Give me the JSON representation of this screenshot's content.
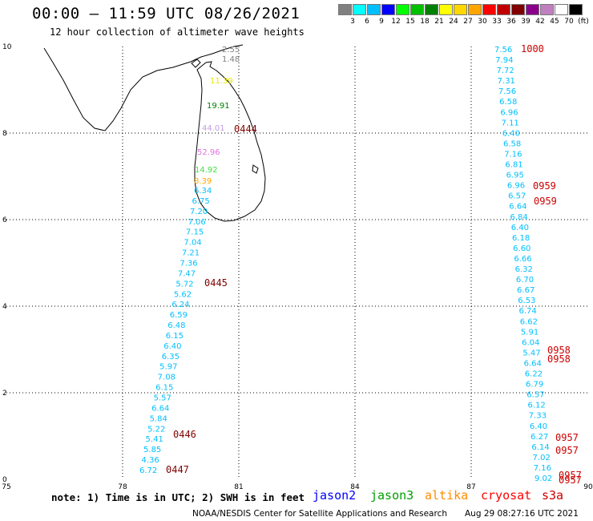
{
  "header": {
    "title": "00:00 – 11:59 UTC 08/26/2021",
    "subtitle": "12 hour collection of altimeter wave heights"
  },
  "legend": {
    "unit": "(ft)",
    "colors": [
      "#808080",
      "#00ffff",
      "#00bfff",
      "#0000ff",
      "#00ff00",
      "#00c000",
      "#008000",
      "#ffff00",
      "#ffd700",
      "#ffa500",
      "#ff0000",
      "#c00000",
      "#800000",
      "#8b008b",
      "#c080c0",
      "#ffffff",
      "#000000"
    ],
    "labels": [
      "3",
      "6",
      "9",
      "12",
      "15",
      "18",
      "21",
      "24",
      "27",
      "30",
      "33",
      "36",
      "39",
      "42",
      "45",
      "70"
    ]
  },
  "axes": {
    "x_ticks": [
      "75",
      "78",
      "81",
      "84",
      "87",
      "90"
    ],
    "y_ticks": [
      "0",
      "2",
      "4",
      "6",
      "8",
      "10"
    ]
  },
  "map_icons": [
    "sri-lanka-coastline",
    "india-coastline"
  ],
  "track1": {
    "color": "#00bfff",
    "values": [
      "6.72",
      "4.36",
      "5.85",
      "5.41",
      "5.22",
      "5.84",
      "6.64",
      "5.57",
      "6.15",
      "7.08",
      "5.97",
      "6.35",
      "6.40",
      "6.15",
      "6.48",
      "6.59",
      "6.24",
      "5.62",
      "5.72",
      "7.47",
      "7.36",
      "7.21",
      "7.04",
      "7.15",
      "7.06",
      "7.20",
      "6.75",
      "6.34"
    ]
  },
  "track1_north": {
    "values": [
      "8.39",
      "14.92",
      "52.96",
      "44.01",
      "19.91",
      "11.39",
      "1.48",
      "2.55"
    ],
    "colors": [
      "#ffa500",
      "#40e040",
      "#e070e0",
      "#c0a0e0",
      "#008000",
      "#e8e800",
      "#808080",
      "#808080"
    ]
  },
  "track2": {
    "color": "#00bfff",
    "values": [
      "7.56",
      "7.94",
      "7.72",
      "7.31",
      "7.56",
      "6.58",
      "6.96",
      "7.11",
      "6.40",
      "6.58",
      "7.16",
      "6.81",
      "6.95",
      "6.96",
      "6.57",
      "6.64",
      "6.84",
      "6.40",
      "6.18",
      "6.60",
      "6.66",
      "6.32",
      "6.70",
      "6.67",
      "6.53",
      "6.74",
      "6.62",
      "5.91",
      "6.04",
      "5.47",
      "6.64",
      "6.22",
      "6.79",
      "6.57",
      "6.12",
      "7.33",
      "6.40",
      "6.27",
      "6.14",
      "7.02",
      "7.16",
      "9.02"
    ]
  },
  "timestamps": {
    "color": "#cc0000",
    "left": [
      "0444",
      "0445",
      "0446",
      "0447"
    ],
    "right": [
      "1000",
      "0959",
      "0959",
      "0958",
      "0958",
      "0957",
      "0957",
      "0957",
      "0957"
    ]
  },
  "note": "note: 1) Time is in UTC; 2) SWH is in feet",
  "satellites": [
    {
      "name": "jason2",
      "color": "#0000ff"
    },
    {
      "name": "jason3",
      "color": "#00a000"
    },
    {
      "name": "altika",
      "color": "#ff8c00"
    },
    {
      "name": "cryosat",
      "color": "#ff0000"
    },
    {
      "name": "s3a",
      "color": "#cc0000"
    }
  ],
  "footer": {
    "credit": "NOAA/NESDIS Center for Satellite Applications and Research",
    "generated": "Aug 29 08:27:16 UTC 2021"
  }
}
